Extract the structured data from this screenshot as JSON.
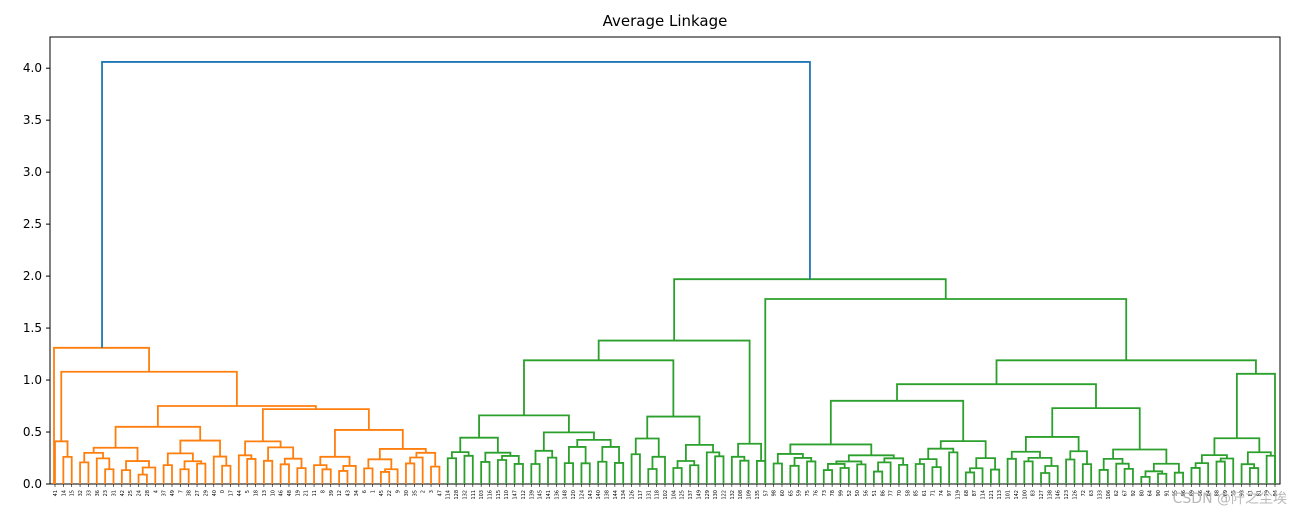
{
  "chart_data": {
    "type": "dendrogram",
    "title": "Average Linkage",
    "xlabel": "",
    "ylabel": "",
    "ylim": [
      0,
      4.3
    ],
    "yticks": [
      0.0,
      0.5,
      1.0,
      1.5,
      2.0,
      2.5,
      3.0,
      3.5,
      4.0
    ],
    "grid": false,
    "colors": {
      "cluster_1": "#ff7f0e",
      "cluster_2": "#2ca02c",
      "root": "#1f77b4",
      "axis": "#000000"
    },
    "leaves": [
      "41",
      "14",
      "15",
      "32",
      "33",
      "36",
      "23",
      "31",
      "42",
      "25",
      "24",
      "28",
      "4",
      "37",
      "49",
      "7",
      "38",
      "27",
      "29",
      "40",
      "0",
      "17",
      "44",
      "5",
      "18",
      "13",
      "10",
      "46",
      "48",
      "19",
      "21",
      "11",
      "8",
      "39",
      "12",
      "43",
      "34",
      "6",
      "1",
      "45",
      "22",
      "9",
      "30",
      "35",
      "2",
      "3",
      "47",
      "114",
      "128",
      "132",
      "111",
      "103",
      "116",
      "115",
      "110",
      "147",
      "112",
      "139",
      "145",
      "141",
      "136",
      "148",
      "120",
      "124",
      "143",
      "140",
      "138",
      "144",
      "134",
      "126",
      "117",
      "131",
      "118",
      "102",
      "104",
      "125",
      "137",
      "149",
      "129",
      "130",
      "122",
      "132",
      "108",
      "109",
      "135",
      "57",
      "98",
      "60",
      "65",
      "59",
      "75",
      "76",
      "73",
      "78",
      "99",
      "52",
      "50",
      "56",
      "51",
      "86",
      "77",
      "70",
      "58",
      "85",
      "61",
      "71",
      "74",
      "97",
      "119",
      "68",
      "87",
      "114",
      "121",
      "113",
      "101",
      "142",
      "100",
      "83",
      "127",
      "138",
      "146",
      "123",
      "126",
      "72",
      "63",
      "133",
      "106",
      "62",
      "67",
      "92",
      "80",
      "64",
      "90",
      "91",
      "95",
      "96",
      "89",
      "66",
      "84",
      "88",
      "69",
      "55",
      "93",
      "81",
      "81",
      "79",
      "94"
    ],
    "merges": [
      {
        "left": "L",
        "right": "R",
        "height": 4.06
      },
      {
        "left": "L",
        "right": "R",
        "height": 1.31
      },
      {
        "left": "L",
        "right": "R",
        "height": 1.08
      },
      {
        "left": "L",
        "right": "R",
        "height": 0.75
      },
      {
        "left": "L",
        "right": "R",
        "height": 0.72
      },
      {
        "left": "L",
        "right": "R",
        "height": 0.55
      },
      {
        "left": "L",
        "right": "R",
        "height": 0.52
      },
      {
        "left": "L",
        "right": "R",
        "height": 1.97
      },
      {
        "left": "L",
        "right": "R",
        "height": 1.78
      },
      {
        "left": "L",
        "right": "R",
        "height": 1.38
      },
      {
        "left": "L",
        "right": "R",
        "height": 1.19
      },
      {
        "left": "L",
        "right": "R",
        "height": 1.09
      },
      {
        "left": "L",
        "right": "R",
        "height": 1.06
      },
      {
        "left": "L",
        "right": "R",
        "height": 0.96
      },
      {
        "left": "L",
        "right": "R",
        "height": 0.93
      },
      {
        "left": "L",
        "right": "R",
        "height": 0.8
      },
      {
        "left": "L",
        "right": "R",
        "height": 0.73
      },
      {
        "left": "L",
        "right": "R",
        "height": 0.69
      },
      {
        "left": "L",
        "right": "R",
        "height": 0.66
      },
      {
        "left": "L",
        "right": "R",
        "height": 0.6
      }
    ]
  },
  "watermark": "CSDN @阡之尘埃"
}
